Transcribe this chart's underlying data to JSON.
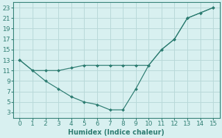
{
  "x": [
    0,
    1,
    2,
    3,
    4,
    5,
    6,
    7,
    8,
    9,
    10,
    11,
    12,
    13,
    14,
    15
  ],
  "upper": [
    13,
    11,
    11,
    11,
    11.5,
    12,
    12,
    12,
    12,
    12,
    12,
    15,
    17,
    21,
    22,
    23
  ],
  "lower": [
    13,
    11,
    9,
    7.5,
    6,
    5,
    4.5,
    3.5,
    3.5,
    7.5,
    12,
    15,
    17,
    21,
    22,
    23
  ],
  "color": "#2e7d72",
  "bg_color": "#d8f0f0",
  "grid_color": "#b8d8d8",
  "xlabel": "Humidex (Indice chaleur)",
  "ylim": [
    2,
    24
  ],
  "xlim": [
    -0.5,
    15.5
  ],
  "yticks": [
    3,
    5,
    7,
    9,
    11,
    13,
    15,
    17,
    19,
    21,
    23
  ],
  "xticks": [
    0,
    1,
    2,
    3,
    4,
    5,
    6,
    7,
    8,
    9,
    10,
    11,
    12,
    13,
    14,
    15
  ],
  "xlabel_fontsize": 7,
  "tick_fontsize": 6.5
}
